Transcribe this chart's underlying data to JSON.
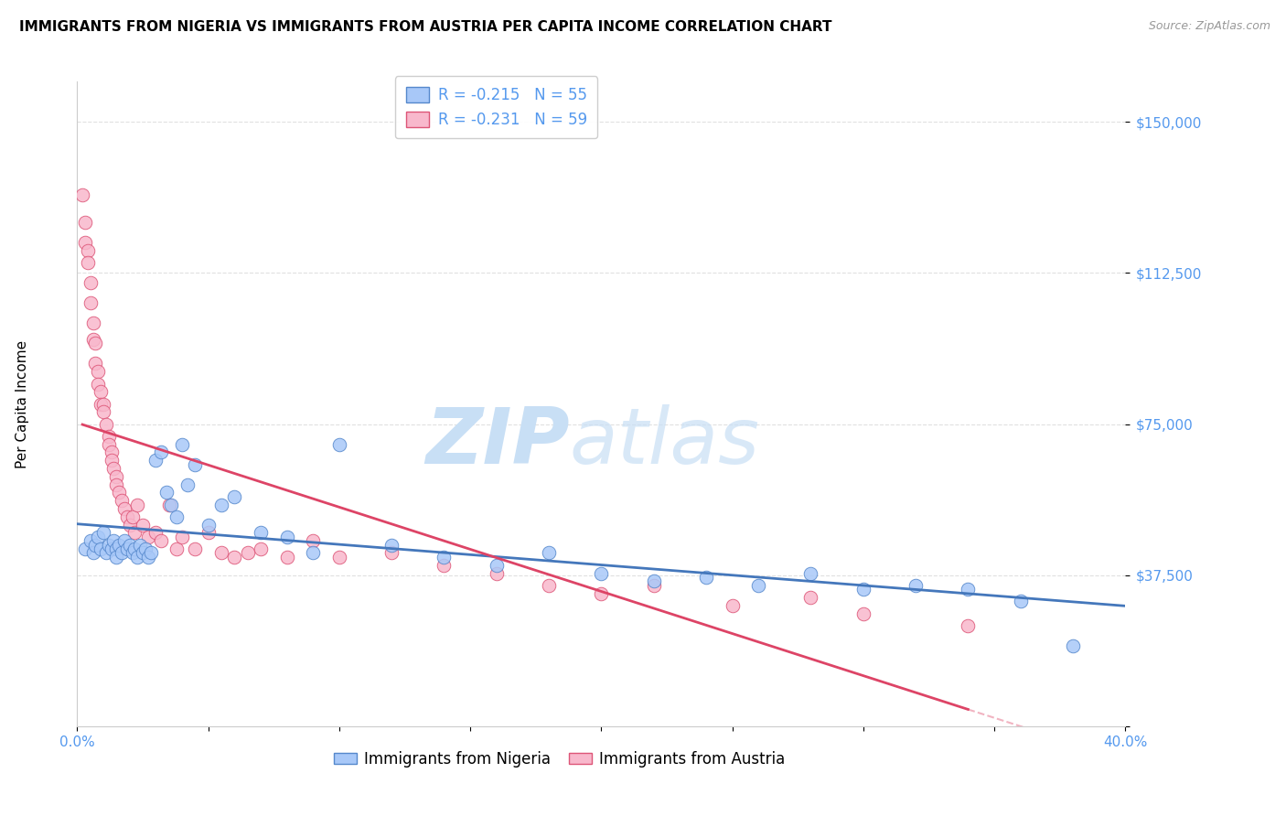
{
  "title": "IMMIGRANTS FROM NIGERIA VS IMMIGRANTS FROM AUSTRIA PER CAPITA INCOME CORRELATION CHART",
  "source": "Source: ZipAtlas.com",
  "ylabel": "Per Capita Income",
  "xlim": [
    0.0,
    0.4
  ],
  "ylim": [
    0,
    160000
  ],
  "yticks": [
    0,
    37500,
    75000,
    112500,
    150000
  ],
  "xticks": [
    0.0,
    0.05,
    0.1,
    0.15,
    0.2,
    0.25,
    0.3,
    0.35,
    0.4
  ],
  "xtick_labels": [
    "0.0%",
    "",
    "",
    "",
    "",
    "",
    "",
    "",
    "40.0%"
  ],
  "ytick_labels": [
    "",
    "$37,500",
    "$75,000",
    "$112,500",
    "$150,000"
  ],
  "nigeria_color": "#a8c8f8",
  "austria_color": "#f8b8cc",
  "nigeria_edge_color": "#5588cc",
  "austria_edge_color": "#dd5577",
  "nigeria_line_color": "#4477bb",
  "austria_line_color": "#dd4466",
  "R_nigeria": -0.215,
  "N_nigeria": 55,
  "R_austria": -0.231,
  "N_austria": 59,
  "watermark_zip": "ZIP",
  "watermark_atlas": "atlas",
  "watermark_color_zip": "#c0d8f0",
  "watermark_color_atlas": "#c0d8f0",
  "title_fontsize": 11,
  "axis_color": "#5599ee",
  "grid_color": "#dddddd",
  "nigeria_x": [
    0.003,
    0.005,
    0.006,
    0.007,
    0.008,
    0.009,
    0.01,
    0.011,
    0.012,
    0.013,
    0.014,
    0.015,
    0.015,
    0.016,
    0.017,
    0.018,
    0.019,
    0.02,
    0.021,
    0.022,
    0.023,
    0.024,
    0.025,
    0.026,
    0.027,
    0.028,
    0.03,
    0.032,
    0.034,
    0.036,
    0.038,
    0.04,
    0.042,
    0.045,
    0.05,
    0.055,
    0.06,
    0.07,
    0.08,
    0.09,
    0.1,
    0.12,
    0.14,
    0.16,
    0.18,
    0.2,
    0.22,
    0.24,
    0.26,
    0.28,
    0.3,
    0.32,
    0.34,
    0.36,
    0.38
  ],
  "nigeria_y": [
    44000,
    46000,
    43000,
    45000,
    47000,
    44000,
    48000,
    43000,
    45000,
    44000,
    46000,
    44000,
    42000,
    45000,
    43000,
    46000,
    44000,
    45000,
    43000,
    44000,
    42000,
    45000,
    43000,
    44000,
    42000,
    43000,
    66000,
    68000,
    58000,
    55000,
    52000,
    70000,
    60000,
    65000,
    50000,
    55000,
    57000,
    48000,
    47000,
    43000,
    70000,
    45000,
    42000,
    40000,
    43000,
    38000,
    36000,
    37000,
    35000,
    38000,
    34000,
    35000,
    34000,
    31000,
    20000
  ],
  "austria_x": [
    0.002,
    0.003,
    0.003,
    0.004,
    0.004,
    0.005,
    0.005,
    0.006,
    0.006,
    0.007,
    0.007,
    0.008,
    0.008,
    0.009,
    0.009,
    0.01,
    0.01,
    0.011,
    0.012,
    0.012,
    0.013,
    0.013,
    0.014,
    0.015,
    0.015,
    0.016,
    0.017,
    0.018,
    0.019,
    0.02,
    0.021,
    0.022,
    0.023,
    0.025,
    0.027,
    0.03,
    0.032,
    0.035,
    0.038,
    0.04,
    0.045,
    0.05,
    0.055,
    0.06,
    0.065,
    0.07,
    0.08,
    0.09,
    0.1,
    0.12,
    0.14,
    0.16,
    0.18,
    0.2,
    0.22,
    0.25,
    0.28,
    0.3,
    0.34
  ],
  "austria_y": [
    132000,
    125000,
    120000,
    118000,
    115000,
    110000,
    105000,
    100000,
    96000,
    95000,
    90000,
    88000,
    85000,
    83000,
    80000,
    80000,
    78000,
    75000,
    72000,
    70000,
    68000,
    66000,
    64000,
    62000,
    60000,
    58000,
    56000,
    54000,
    52000,
    50000,
    52000,
    48000,
    55000,
    50000,
    47000,
    48000,
    46000,
    55000,
    44000,
    47000,
    44000,
    48000,
    43000,
    42000,
    43000,
    44000,
    42000,
    46000,
    42000,
    43000,
    40000,
    38000,
    35000,
    33000,
    35000,
    30000,
    32000,
    28000,
    25000
  ]
}
